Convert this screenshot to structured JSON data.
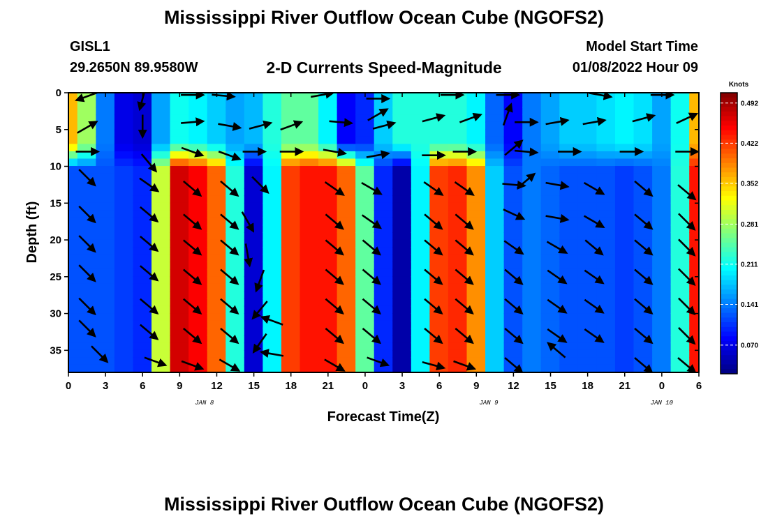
{
  "header": {
    "title": "Mississippi River Outflow Ocean Cube (NGOFS2)",
    "station": "GISL1",
    "location": "29.2650N  89.9580W",
    "subtitle": "2-D Currents Speed-Magnitude",
    "model_label": "Model Start Time",
    "model_time": "01/08/2022 Hour 09"
  },
  "footer": {
    "title": "Mississippi River Outflow Ocean Cube (NGOFS2)"
  },
  "chart_data": {
    "type": "heatmap",
    "title": "2-D Currents Speed-Magnitude",
    "xlabel": "Forecast Time(Z)",
    "ylabel": "Depth (ft)",
    "xlim": [
      0,
      51
    ],
    "ylim": [
      38,
      0
    ],
    "x_unit": "hours since 01/08 00Z",
    "x_ticks": [
      {
        "value": 0,
        "label": "0"
      },
      {
        "value": 3,
        "label": "3"
      },
      {
        "value": 6,
        "label": "6"
      },
      {
        "value": 9,
        "label": "9"
      },
      {
        "value": 12,
        "label": "12"
      },
      {
        "value": 15,
        "label": "15"
      },
      {
        "value": 18,
        "label": "18"
      },
      {
        "value": 21,
        "label": "21"
      },
      {
        "value": 24,
        "label": "0"
      },
      {
        "value": 27,
        "label": "3"
      },
      {
        "value": 30,
        "label": "6"
      },
      {
        "value": 33,
        "label": "9"
      },
      {
        "value": 36,
        "label": "12"
      },
      {
        "value": 39,
        "label": "15"
      },
      {
        "value": 42,
        "label": "18"
      },
      {
        "value": 45,
        "label": "21"
      },
      {
        "value": 48,
        "label": "0"
      },
      {
        "value": 51,
        "label": "6"
      }
    ],
    "date_labels": [
      {
        "value": 11,
        "label": "JAN 8"
      },
      {
        "value": 34,
        "label": "JAN 9"
      },
      {
        "value": 48,
        "label": "JAN 10"
      }
    ],
    "y_ticks": [
      0,
      5,
      10,
      15,
      20,
      25,
      30,
      35
    ],
    "colorbar": {
      "title": "Knots",
      "min": 0.02,
      "max": 0.51,
      "labels": [
        0.492,
        0.422,
        0.352,
        0.281,
        0.211,
        0.141,
        0.07
      ],
      "colormap": "jet"
    },
    "columns": [
      {
        "x": 0.0,
        "surface": 0.36,
        "deep": 0.12
      },
      {
        "x": 1.5,
        "surface": 0.28,
        "deep": 0.12
      },
      {
        "x": 3.0,
        "surface": 0.14,
        "deep": 0.12
      },
      {
        "x": 4.5,
        "surface": 0.07,
        "deep": 0.11
      },
      {
        "x": 6.0,
        "surface": 0.06,
        "deep": 0.1
      },
      {
        "x": 7.5,
        "surface": 0.16,
        "deep": 0.3
      },
      {
        "x": 9.0,
        "surface": 0.21,
        "deep": 0.47
      },
      {
        "x": 10.5,
        "surface": 0.2,
        "deep": 0.45
      },
      {
        "x": 12.0,
        "surface": 0.18,
        "deep": 0.4
      },
      {
        "x": 13.5,
        "surface": 0.16,
        "deep": 0.22
      },
      {
        "x": 15.0,
        "surface": 0.17,
        "deep": 0.06
      },
      {
        "x": 16.5,
        "surface": 0.22,
        "deep": 0.2
      },
      {
        "x": 18.0,
        "surface": 0.25,
        "deep": 0.42
      },
      {
        "x": 19.5,
        "surface": 0.25,
        "deep": 0.44
      },
      {
        "x": 21.0,
        "surface": 0.2,
        "deep": 0.44
      },
      {
        "x": 22.5,
        "surface": 0.08,
        "deep": 0.4
      },
      {
        "x": 24.0,
        "surface": 0.1,
        "deep": 0.25
      },
      {
        "x": 25.5,
        "surface": 0.18,
        "deep": 0.1
      },
      {
        "x": 27.0,
        "surface": 0.22,
        "deep": 0.04
      },
      {
        "x": 28.5,
        "surface": 0.22,
        "deep": 0.2
      },
      {
        "x": 30.0,
        "surface": 0.22,
        "deep": 0.42
      },
      {
        "x": 31.5,
        "surface": 0.22,
        "deep": 0.43
      },
      {
        "x": 33.0,
        "surface": 0.2,
        "deep": 0.38
      },
      {
        "x": 34.5,
        "surface": 0.13,
        "deep": 0.18
      },
      {
        "x": 36.0,
        "surface": 0.08,
        "deep": 0.12
      },
      {
        "x": 37.5,
        "surface": 0.14,
        "deep": 0.14
      },
      {
        "x": 39.0,
        "surface": 0.16,
        "deep": 0.13
      },
      {
        "x": 40.5,
        "surface": 0.18,
        "deep": 0.12
      },
      {
        "x": 42.0,
        "surface": 0.18,
        "deep": 0.12
      },
      {
        "x": 43.5,
        "surface": 0.19,
        "deep": 0.12
      },
      {
        "x": 45.0,
        "surface": 0.2,
        "deep": 0.11
      },
      {
        "x": 46.5,
        "surface": 0.19,
        "deep": 0.12
      },
      {
        "x": 48.0,
        "surface": 0.16,
        "deep": 0.14
      },
      {
        "x": 49.5,
        "surface": 0.21,
        "deep": 0.22
      },
      {
        "x": 51.0,
        "surface": 0.36,
        "deep": 0.44
      }
    ],
    "vectors": [
      {
        "x": 1.5,
        "depth": 0.5,
        "angle": 200
      },
      {
        "x": 6.0,
        "depth": 0.8,
        "angle": 255
      },
      {
        "x": 10.0,
        "depth": 0.3,
        "angle": 0
      },
      {
        "x": 12.5,
        "depth": 0.4,
        "angle": 355
      },
      {
        "x": 20.5,
        "depth": 0.3,
        "angle": 10
      },
      {
        "x": 25.0,
        "depth": 0.8,
        "angle": 0
      },
      {
        "x": 31.0,
        "depth": 0.3,
        "angle": 0
      },
      {
        "x": 35.5,
        "depth": 0.3,
        "angle": 0
      },
      {
        "x": 43.0,
        "depth": 0.3,
        "angle": 350
      },
      {
        "x": 48.0,
        "depth": 0.3,
        "angle": 0
      },
      {
        "x": 1.5,
        "depth": 4.7,
        "angle": 30
      },
      {
        "x": 6.0,
        "depth": 4.5,
        "angle": 270
      },
      {
        "x": 10.0,
        "depth": 4.0,
        "angle": 5
      },
      {
        "x": 13.0,
        "depth": 4.5,
        "angle": 350
      },
      {
        "x": 15.5,
        "depth": 4.5,
        "angle": 15
      },
      {
        "x": 18.0,
        "depth": 4.5,
        "angle": 20
      },
      {
        "x": 22.0,
        "depth": 4.0,
        "angle": 355
      },
      {
        "x": 25.0,
        "depth": 3.0,
        "angle": 30
      },
      {
        "x": 25.5,
        "depth": 4.5,
        "angle": 15
      },
      {
        "x": 29.5,
        "depth": 3.5,
        "angle": 15
      },
      {
        "x": 32.5,
        "depth": 3.5,
        "angle": 20
      },
      {
        "x": 35.5,
        "depth": 3.0,
        "angle": 70
      },
      {
        "x": 37.0,
        "depth": 4.0,
        "angle": 0
      },
      {
        "x": 39.5,
        "depth": 4.0,
        "angle": 10
      },
      {
        "x": 42.5,
        "depth": 4.0,
        "angle": 10
      },
      {
        "x": 46.5,
        "depth": 3.5,
        "angle": 15
      },
      {
        "x": 50.0,
        "depth": 3.5,
        "angle": 25
      },
      {
        "x": 1.5,
        "depth": 8.0,
        "angle": 0
      },
      {
        "x": 6.5,
        "depth": 9.5,
        "angle": 310
      },
      {
        "x": 10.0,
        "depth": 8.0,
        "angle": 340
      },
      {
        "x": 13.0,
        "depth": 8.5,
        "angle": 340
      },
      {
        "x": 15.0,
        "depth": 8.0,
        "angle": 0
      },
      {
        "x": 18.0,
        "depth": 8.0,
        "angle": 0
      },
      {
        "x": 21.5,
        "depth": 8.0,
        "angle": 350
      },
      {
        "x": 25.0,
        "depth": 8.5,
        "angle": 10
      },
      {
        "x": 29.5,
        "depth": 8.5,
        "angle": 0
      },
      {
        "x": 32.0,
        "depth": 8.0,
        "angle": 0
      },
      {
        "x": 36.0,
        "depth": 7.5,
        "angle": 40
      },
      {
        "x": 37.0,
        "depth": 8.0,
        "angle": 355
      },
      {
        "x": 40.5,
        "depth": 8.0,
        "angle": 0
      },
      {
        "x": 45.5,
        "depth": 8.0,
        "angle": 0
      },
      {
        "x": 50.0,
        "depth": 8.0,
        "angle": 0
      },
      {
        "x": 1.5,
        "depth": 11.5,
        "angle": 315
      },
      {
        "x": 6.5,
        "depth": 12.5,
        "angle": 325
      },
      {
        "x": 10.0,
        "depth": 13.0,
        "angle": 320
      },
      {
        "x": 13.0,
        "depth": 13.0,
        "angle": 320
      },
      {
        "x": 15.5,
        "depth": 12.5,
        "angle": 315
      },
      {
        "x": 21.5,
        "depth": 13.0,
        "angle": 325
      },
      {
        "x": 24.5,
        "depth": 13.0,
        "angle": 330
      },
      {
        "x": 29.5,
        "depth": 13.0,
        "angle": 325
      },
      {
        "x": 32.0,
        "depth": 13.0,
        "angle": 325
      },
      {
        "x": 36.0,
        "depth": 12.5,
        "angle": 355
      },
      {
        "x": 37.0,
        "depth": 12.0,
        "angle": 40
      },
      {
        "x": 39.5,
        "depth": 12.5,
        "angle": 350
      },
      {
        "x": 42.5,
        "depth": 13.0,
        "angle": 330
      },
      {
        "x": 46.5,
        "depth": 13.0,
        "angle": 320
      },
      {
        "x": 50.0,
        "depth": 13.5,
        "angle": 320
      },
      {
        "x": 1.5,
        "depth": 16.5,
        "angle": 315
      },
      {
        "x": 6.5,
        "depth": 16.5,
        "angle": 320
      },
      {
        "x": 10.0,
        "depth": 17.5,
        "angle": 320
      },
      {
        "x": 13.0,
        "depth": 17.5,
        "angle": 320
      },
      {
        "x": 14.5,
        "depth": 17.5,
        "angle": 300
      },
      {
        "x": 21.5,
        "depth": 17.5,
        "angle": 320
      },
      {
        "x": 24.5,
        "depth": 17.5,
        "angle": 325
      },
      {
        "x": 29.5,
        "depth": 17.5,
        "angle": 320
      },
      {
        "x": 32.0,
        "depth": 17.5,
        "angle": 320
      },
      {
        "x": 36.0,
        "depth": 16.5,
        "angle": 335
      },
      {
        "x": 39.5,
        "depth": 17.0,
        "angle": 350
      },
      {
        "x": 42.5,
        "depth": 17.5,
        "angle": 330
      },
      {
        "x": 46.5,
        "depth": 17.5,
        "angle": 320
      },
      {
        "x": 50.0,
        "depth": 17.5,
        "angle": 315
      },
      {
        "x": 1.5,
        "depth": 20.5,
        "angle": 315
      },
      {
        "x": 6.5,
        "depth": 20.5,
        "angle": 320
      },
      {
        "x": 10.0,
        "depth": 21.0,
        "angle": 320
      },
      {
        "x": 13.0,
        "depth": 21.0,
        "angle": 320
      },
      {
        "x": 14.5,
        "depth": 22.0,
        "angle": 280
      },
      {
        "x": 21.5,
        "depth": 21.0,
        "angle": 320
      },
      {
        "x": 24.5,
        "depth": 21.0,
        "angle": 320
      },
      {
        "x": 29.5,
        "depth": 21.0,
        "angle": 320
      },
      {
        "x": 32.0,
        "depth": 21.0,
        "angle": 320
      },
      {
        "x": 36.0,
        "depth": 21.0,
        "angle": 325
      },
      {
        "x": 39.5,
        "depth": 21.0,
        "angle": 330
      },
      {
        "x": 42.5,
        "depth": 21.0,
        "angle": 320
      },
      {
        "x": 46.5,
        "depth": 21.0,
        "angle": 320
      },
      {
        "x": 50.0,
        "depth": 21.0,
        "angle": 315
      },
      {
        "x": 1.5,
        "depth": 24.5,
        "angle": 315
      },
      {
        "x": 6.5,
        "depth": 24.5,
        "angle": 320
      },
      {
        "x": 10.0,
        "depth": 25.0,
        "angle": 320
      },
      {
        "x": 13.0,
        "depth": 25.0,
        "angle": 320
      },
      {
        "x": 15.5,
        "depth": 25.5,
        "angle": 250
      },
      {
        "x": 21.5,
        "depth": 25.0,
        "angle": 320
      },
      {
        "x": 24.5,
        "depth": 25.0,
        "angle": 320
      },
      {
        "x": 29.5,
        "depth": 25.0,
        "angle": 320
      },
      {
        "x": 32.0,
        "depth": 25.0,
        "angle": 320
      },
      {
        "x": 36.0,
        "depth": 25.0,
        "angle": 320
      },
      {
        "x": 39.5,
        "depth": 25.0,
        "angle": 325
      },
      {
        "x": 42.5,
        "depth": 25.0,
        "angle": 325
      },
      {
        "x": 46.5,
        "depth": 25.0,
        "angle": 320
      },
      {
        "x": 50.0,
        "depth": 25.0,
        "angle": 315
      },
      {
        "x": 1.5,
        "depth": 29.0,
        "angle": 315
      },
      {
        "x": 6.5,
        "depth": 29.0,
        "angle": 320
      },
      {
        "x": 10.0,
        "depth": 29.0,
        "angle": 320
      },
      {
        "x": 13.0,
        "depth": 29.0,
        "angle": 320
      },
      {
        "x": 15.5,
        "depth": 29.5,
        "angle": 230
      },
      {
        "x": 16.5,
        "depth": 31.0,
        "angle": 160
      },
      {
        "x": 21.5,
        "depth": 29.0,
        "angle": 320
      },
      {
        "x": 24.5,
        "depth": 29.0,
        "angle": 320
      },
      {
        "x": 29.5,
        "depth": 29.0,
        "angle": 320
      },
      {
        "x": 32.0,
        "depth": 29.0,
        "angle": 320
      },
      {
        "x": 36.0,
        "depth": 29.0,
        "angle": 320
      },
      {
        "x": 39.5,
        "depth": 29.0,
        "angle": 325
      },
      {
        "x": 42.5,
        "depth": 29.0,
        "angle": 325
      },
      {
        "x": 46.5,
        "depth": 29.0,
        "angle": 320
      },
      {
        "x": 50.0,
        "depth": 29.0,
        "angle": 315
      },
      {
        "x": 1.5,
        "depth": 32.0,
        "angle": 315
      },
      {
        "x": 6.5,
        "depth": 32.5,
        "angle": 320
      },
      {
        "x": 10.0,
        "depth": 33.0,
        "angle": 320
      },
      {
        "x": 13.0,
        "depth": 33.0,
        "angle": 320
      },
      {
        "x": 15.5,
        "depth": 34.0,
        "angle": 235
      },
      {
        "x": 21.5,
        "depth": 33.0,
        "angle": 320
      },
      {
        "x": 24.5,
        "depth": 33.0,
        "angle": 320
      },
      {
        "x": 29.5,
        "depth": 33.0,
        "angle": 320
      },
      {
        "x": 32.0,
        "depth": 33.0,
        "angle": 320
      },
      {
        "x": 36.0,
        "depth": 33.0,
        "angle": 320
      },
      {
        "x": 39.5,
        "depth": 33.0,
        "angle": 325
      },
      {
        "x": 42.5,
        "depth": 33.0,
        "angle": 325
      },
      {
        "x": 46.5,
        "depth": 33.0,
        "angle": 320
      },
      {
        "x": 50.0,
        "depth": 33.0,
        "angle": 315
      },
      {
        "x": 2.5,
        "depth": 35.5,
        "angle": 315
      },
      {
        "x": 7.0,
        "depth": 36.5,
        "angle": 340
      },
      {
        "x": 10.0,
        "depth": 37.0,
        "angle": 340
      },
      {
        "x": 13.0,
        "depth": 37.0,
        "angle": 330
      },
      {
        "x": 16.5,
        "depth": 35.5,
        "angle": 170
      },
      {
        "x": 21.5,
        "depth": 37.0,
        "angle": 330
      },
      {
        "x": 25.0,
        "depth": 36.5,
        "angle": 340
      },
      {
        "x": 29.5,
        "depth": 37.0,
        "angle": 345
      },
      {
        "x": 32.0,
        "depth": 37.0,
        "angle": 340
      },
      {
        "x": 36.0,
        "depth": 37.0,
        "angle": 320
      },
      {
        "x": 39.5,
        "depth": 35.0,
        "angle": 140
      },
      {
        "x": 46.5,
        "depth": 37.0,
        "angle": 320
      },
      {
        "x": 50.0,
        "depth": 37.0,
        "angle": 320
      }
    ]
  }
}
